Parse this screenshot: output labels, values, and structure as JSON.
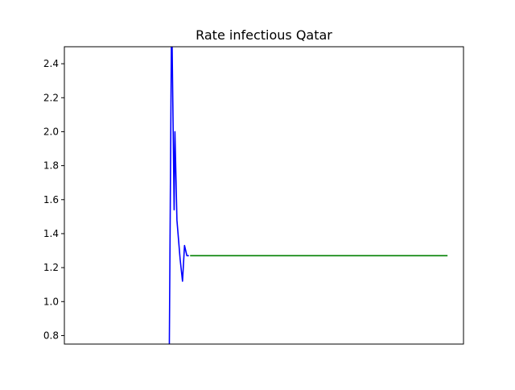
{
  "chart_data": {
    "type": "line",
    "title": "Rate infectious Qatar",
    "xlabel": "",
    "ylabel": "",
    "x_ticks_visible": false,
    "xlim": [
      0,
      100
    ],
    "ylim": [
      0.75,
      2.5
    ],
    "yticks": [
      0.8,
      1.0,
      1.2,
      1.4,
      1.6,
      1.8,
      2.0,
      2.2,
      2.4
    ],
    "ytick_labels": [
      "0.8",
      "1.0",
      "1.2",
      "1.4",
      "1.6",
      "1.8",
      "2.0",
      "2.2",
      "2.4"
    ],
    "grid": false,
    "legend": "none",
    "series": [
      {
        "color": "#0000ff",
        "x": [
          26.3,
          26.8,
          27.0,
          27.5,
          27.7,
          28.2,
          29.0,
          29.6,
          30.1,
          30.7,
          31.2
        ],
        "y": [
          0.75,
          2.5,
          2.5,
          1.54,
          2.0,
          1.48,
          1.25,
          1.12,
          1.33,
          1.27,
          1.27
        ]
      },
      {
        "color": "#008000",
        "x": [
          31.5,
          96.0
        ],
        "y": [
          1.27,
          1.27
        ]
      }
    ]
  }
}
